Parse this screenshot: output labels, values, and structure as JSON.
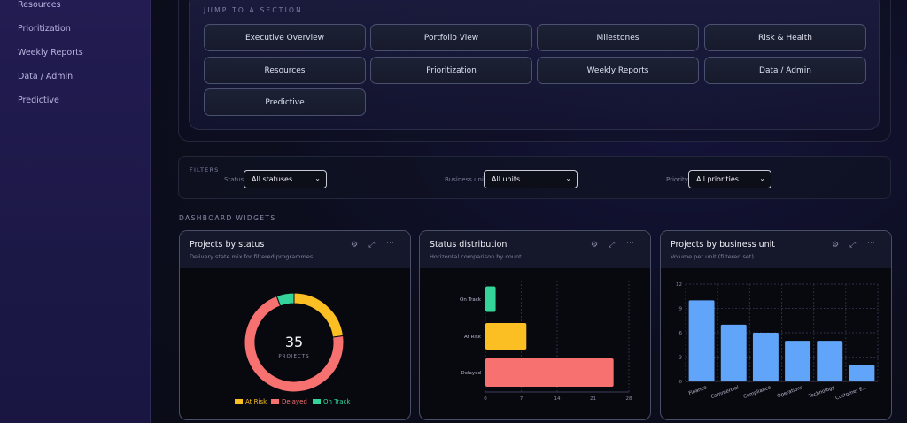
{
  "sidebar": {
    "items": [
      {
        "label": "Resources"
      },
      {
        "label": "Prioritization"
      },
      {
        "label": "Weekly Reports"
      },
      {
        "label": "Data / Admin"
      },
      {
        "label": "Predictive"
      }
    ]
  },
  "jump": {
    "title": "JUMP TO A SECTION",
    "buttons": [
      {
        "label": "Executive Overview"
      },
      {
        "label": "Portfolio View"
      },
      {
        "label": "Milestones"
      },
      {
        "label": "Risk & Health"
      },
      {
        "label": "Resources"
      },
      {
        "label": "Prioritization"
      },
      {
        "label": "Weekly Reports"
      },
      {
        "label": "Data / Admin"
      },
      {
        "label": "Predictive"
      }
    ]
  },
  "filters": {
    "title": "FILTERS",
    "status": {
      "label": "Status",
      "value": "All statuses"
    },
    "business_unit": {
      "label": "Business unit",
      "value": "All units"
    },
    "priority": {
      "label": "Priority",
      "value": "All priorities"
    }
  },
  "widgets": {
    "title": "DASHBOARD WIDGETS",
    "cards": [
      {
        "title": "Projects by status",
        "subtitle": "Delivery state mix for filtered programmes."
      },
      {
        "title": "Status distribution",
        "subtitle": "Horizontal comparison by count."
      },
      {
        "title": "Projects by business unit",
        "subtitle": "Volume per unit (filtered set)."
      }
    ]
  },
  "icons": {
    "settings": "gear-icon",
    "expand": "expand-icon",
    "more": "more-icon"
  },
  "colors": {
    "at_risk": "#fbbf24",
    "delayed": "#f87171",
    "on_track": "#34d399",
    "bar": "#60a5fa"
  },
  "chart_data": [
    {
      "type": "pie",
      "center_value": "35",
      "center_label": "PROJECTS",
      "categories": [
        "At Risk",
        "Delayed",
        "On Track"
      ],
      "values": [
        8,
        25,
        2
      ],
      "legend": "bottom"
    },
    {
      "type": "bar",
      "orientation": "horizontal",
      "categories": [
        "On Track",
        "At Risk",
        "Delayed"
      ],
      "values": [
        2,
        8,
        25
      ],
      "xlim": [
        0,
        28
      ],
      "xticks": [
        "0",
        "7",
        "14",
        "21",
        "28"
      ],
      "grid": true
    },
    {
      "type": "bar",
      "categories": [
        "Finance",
        "Commercial",
        "Compliance",
        "Operations",
        "Technology",
        "Customer E..."
      ],
      "values": [
        10,
        7,
        6,
        5,
        5,
        2
      ],
      "ylim": [
        0,
        12
      ],
      "yticks": [
        "0",
        "3",
        "6",
        "9",
        "12"
      ],
      "grid": true
    }
  ]
}
